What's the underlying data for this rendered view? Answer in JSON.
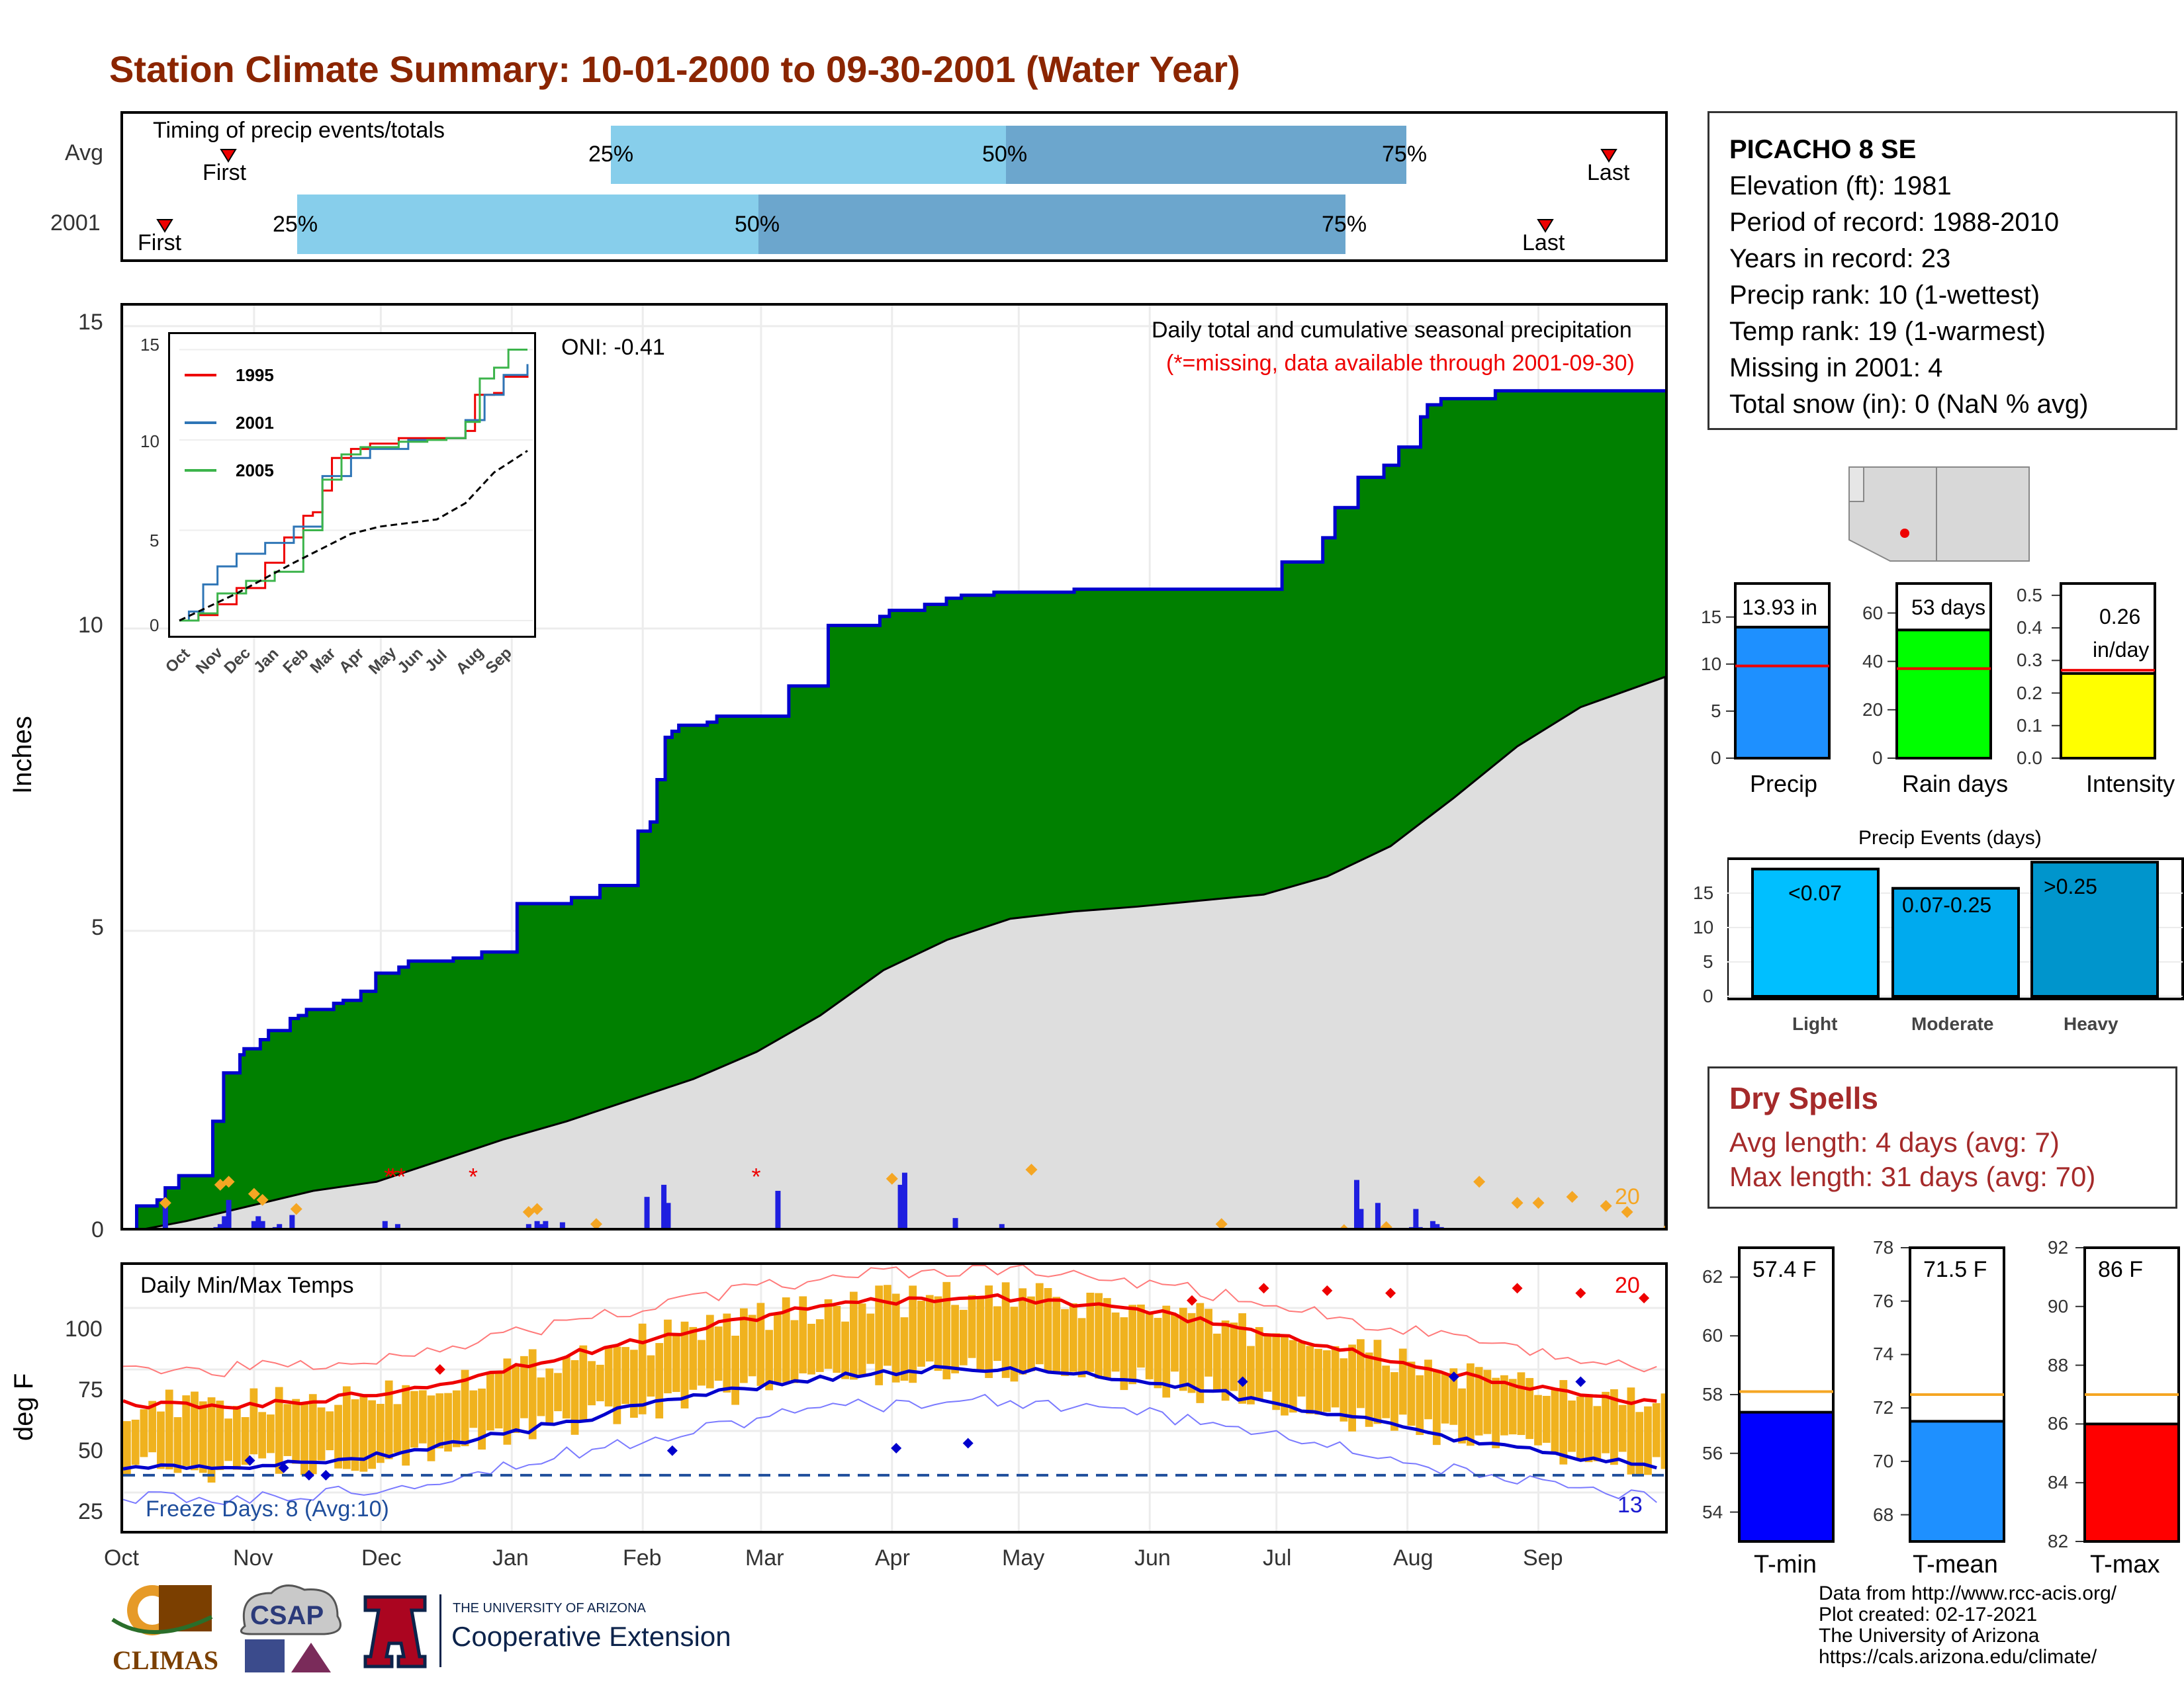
{
  "title": "Station Climate Summary: 10-01-2000 to 09-30-2001 (Water Year)",
  "timing": {
    "label": "Timing of precip events/totals",
    "rows": [
      {
        "name": "Avg",
        "first": "Oct 23",
        "q25": "Jan 20",
        "q50": "Apr 27",
        "q75": "Jul 27",
        "last": "Sep 21"
      },
      {
        "name": "2001",
        "first": "Oct 10",
        "q25": "Nov 12",
        "q50": "Mar 6",
        "q75": "Jul 12",
        "last": "Sep 7"
      }
    ],
    "first_label": "First",
    "last_label": "Last",
    "pct_labels": [
      "25%",
      "50%",
      "75%"
    ]
  },
  "station": {
    "name": "PICACHO 8 SE",
    "lines": [
      "Elevation (ft): 1981",
      "Period of record: 1988-2010",
      "Years in record: 23",
      "Precip rank: 10 (1-wettest)",
      "Temp rank: 19 (1-warmest)",
      "Missing in 2001: 4",
      "Total snow (in): 0 (NaN % avg)"
    ]
  },
  "main_chart": {
    "ylabel": "Inches",
    "header": "Daily total and cumulative seasonal precipitation",
    "missing_note": "(*=missing, data available through 2001-09-30)",
    "oni": "ONI: -0.41",
    "ticks": [
      "0",
      "5",
      "10",
      "15"
    ],
    "month_labels": [
      "Oct",
      "Nov",
      "Dec",
      "Jan",
      "Feb",
      "Mar",
      "Apr",
      "May",
      "Jun",
      "Jul",
      "Aug",
      "Sep"
    ],
    "count_label": "20"
  },
  "inset": {
    "legend": [
      "1995",
      "2001",
      "2005"
    ],
    "ticks": [
      "0",
      "5",
      "10",
      "15"
    ],
    "months": [
      "Oct",
      "Nov",
      "Dec",
      "Jan",
      "Feb",
      "Mar",
      "Apr",
      "May",
      "Jun",
      "Jul",
      "Aug",
      "Sep"
    ]
  },
  "temp_chart": {
    "ylabel": "deg F",
    "label": "Daily Min/Max Temps",
    "freeze": "Freeze Days: 8 (Avg:10)",
    "ticks": [
      "25",
      "50",
      "75",
      "100"
    ],
    "hot_count": "20",
    "cold_count": "13"
  },
  "summary": {
    "precip": {
      "value": "13.93 in",
      "label": "Precip",
      "ticks": [
        "0",
        "5",
        "10",
        "15"
      ]
    },
    "raindays": {
      "value": "53 days",
      "label": "Rain days",
      "ticks": [
        "0",
        "20",
        "40",
        "60"
      ]
    },
    "intensity": {
      "value1": "0.26",
      "value2": "in/day",
      "label": "Intensity",
      "ticks": [
        "0.0",
        "0.1",
        "0.2",
        "0.3",
        "0.4",
        "0.5"
      ]
    }
  },
  "events": {
    "title": "Precip Events (days)",
    "bars": [
      {
        "label": "<0.07",
        "cat": "Light"
      },
      {
        "label": "0.07-0.25",
        "cat": "Moderate"
      },
      {
        "label": ">0.25",
        "cat": "Heavy"
      }
    ],
    "ticks": [
      "0",
      "5",
      "10",
      "15"
    ]
  },
  "dry": {
    "title": "Dry Spells",
    "avg": "Avg length: 4 days (avg: 7)",
    "max": "Max length: 31 days (avg: 70)"
  },
  "temps": {
    "tmin": {
      "value": "57.4 F",
      "label": "T-min",
      "ticks": [
        "54",
        "56",
        "58",
        "60",
        "62"
      ]
    },
    "tmean": {
      "value": "71.5 F",
      "label": "T-mean",
      "ticks": [
        "68",
        "70",
        "72",
        "74",
        "76",
        "78"
      ]
    },
    "tmax": {
      "value": "86 F",
      "label": "T-max",
      "ticks": [
        "82",
        "84",
        "86",
        "88",
        "90",
        "92"
      ]
    }
  },
  "credits": [
    "Data from http://www.rcc-acis.org/",
    "Plot created: 02-17-2021",
    "The University of Arizona",
    "https://cals.arizona.edu/climate/"
  ],
  "logos": {
    "climas": "CLIMAS",
    "csap": "CSAP",
    "ua_small": "THE UNIVERSITY OF ARIZONA",
    "ua_big": "Cooperative Extension"
  },
  "colors": {
    "title": "#8B2500",
    "green": "#008000",
    "navy": "#0000CD",
    "gold": "#F0B21E",
    "dry": "#A52A2A"
  },
  "chart_data": [
    {
      "type": "area",
      "title": "Daily total and cumulative seasonal precipitation",
      "ylabel": "Inches",
      "ylim": [
        0,
        15
      ],
      "series": [
        {
          "name": "2001",
          "x": [
            0,
            9,
            10,
            23,
            25,
            31,
            32,
            40,
            41,
            65,
            66,
            73,
            74,
            85,
            86,
            88,
            89,
            100,
            101,
            106,
            107,
            122,
            123,
            128,
            129,
            134,
            135,
            155,
            156,
            162,
            163,
            175,
            176,
            186,
            187,
            203,
            204,
            210,
            211,
            243,
            244,
            264,
            265,
            290,
            291,
            330,
            331,
            351,
            352,
            379,
            380,
            388,
            389,
            393,
            394,
            399,
            400,
            404,
            405,
            409,
            410,
            430,
            431,
            437,
            438,
            490,
            491,
            519,
            520,
            526,
            527,
            557,
            558,
            564,
            565,
            590,
            591,
            606,
            607,
            617,
            618,
            641,
            642,
            700,
            701,
            746,
            747,
            853,
            854,
            883,
            884,
            892,
            893,
            909,
            910,
            928,
            929,
            939,
            940,
            955,
            956,
            960,
            961,
            970,
            971,
            1010,
            1011,
            1135
          ],
          "y": [
            0.0,
            0.0,
            0.45,
            0.45,
            0.55,
            0.55,
            0.75,
            0.75,
            0.95,
            0.95,
            1.85,
            1.85,
            2.65,
            2.65,
            2.95,
            2.95,
            3.05,
            3.05,
            3.2,
            3.2,
            3.35,
            3.35,
            3.55,
            3.55,
            3.6,
            3.6,
            3.7,
            3.7,
            3.8,
            3.8,
            3.85,
            3.85,
            4.0,
            4.0,
            4.3,
            4.3,
            4.4,
            4.4,
            4.5,
            4.5,
            4.55,
            4.55,
            4.65,
            4.65,
            5.45,
            5.45,
            5.55,
            5.55,
            5.75,
            5.75,
            6.65,
            6.65,
            6.8,
            6.8,
            7.5,
            7.5,
            8.2,
            8.2,
            8.3,
            8.3,
            8.4,
            8.4,
            8.45,
            8.45,
            8.55,
            8.55,
            9.05,
            9.05,
            10.05,
            10.05,
            10.05,
            10.05,
            10.2,
            10.2,
            10.3,
            10.3,
            10.4,
            10.4,
            10.5,
            10.5,
            10.55,
            10.55,
            10.6,
            10.6,
            10.65,
            10.65,
            10.65,
            10.65,
            11.1,
            11.1,
            11.5,
            11.5,
            12.0,
            12.0,
            12.5,
            12.5,
            12.7,
            12.7,
            13.0,
            13.0,
            13.5,
            13.5,
            13.7,
            13.7,
            13.8,
            13.8,
            13.93,
            13.93
          ],
          "note": "cumulative precip (x in px-space converted by script below)"
        }
      ]
    }
  ]
}
